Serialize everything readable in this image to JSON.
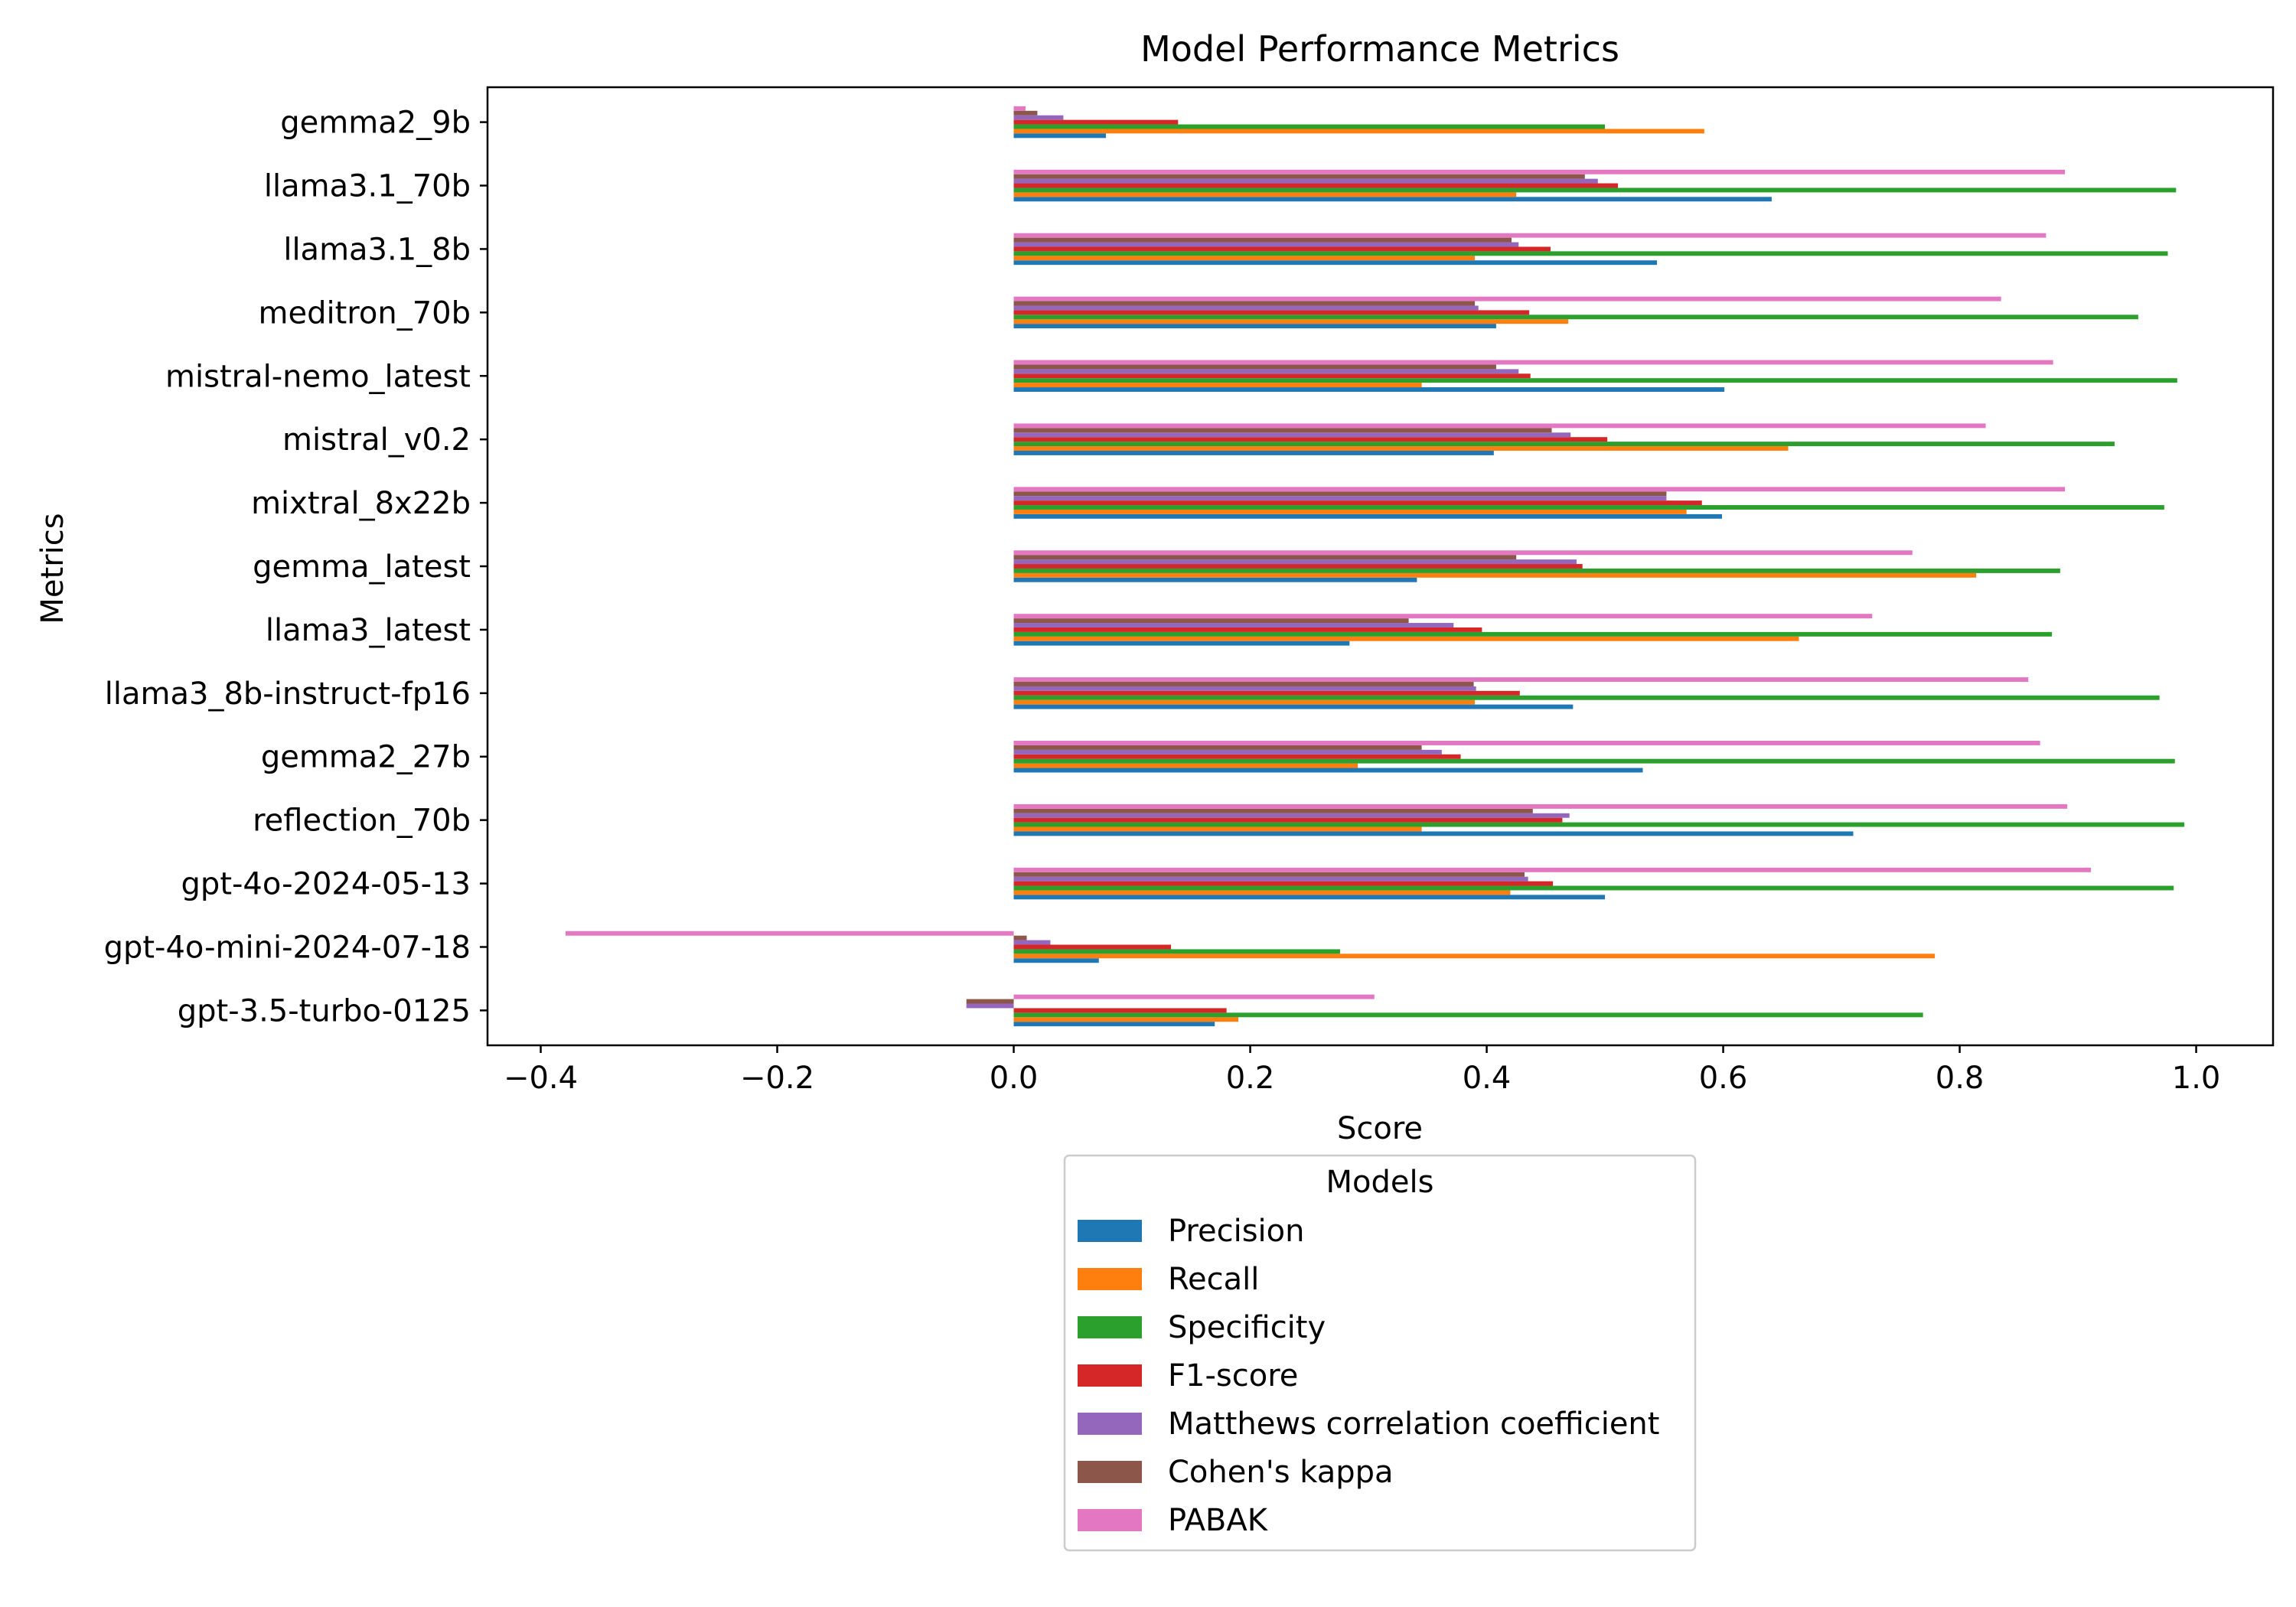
{
  "chart_data": {
    "type": "bar",
    "orientation": "horizontal",
    "title": "Model Performance Metrics",
    "xlabel": "Score",
    "ylabel": "Metrics",
    "xlim": [
      -0.445,
      1.065
    ],
    "xticks": [
      -0.4,
      -0.2,
      0.0,
      0.2,
      0.4,
      0.6,
      0.8,
      1.0
    ],
    "xtick_labels": [
      "−0.4",
      "−0.2",
      "0.0",
      "0.2",
      "0.4",
      "0.6",
      "0.8",
      "1.0"
    ],
    "grid": false,
    "legend": {
      "title": "Models",
      "placement": "below"
    },
    "categories": [
      "gemma2_9b",
      "llama3.1_70b",
      "llama3.1_8b",
      "meditron_70b",
      "mistral-nemo_latest",
      "mistral_v0.2",
      "mixtral_8x22b",
      "gemma_latest",
      "llama3_latest",
      "llama3_8b-instruct-fp16",
      "gemma2_27b",
      "reflection_70b",
      "gpt-4o-2024-05-13",
      "gpt-4o-mini-2024-07-18",
      "gpt-3.5-turbo-0125"
    ],
    "series": [
      {
        "name": "Precision",
        "color": "#1f77b4",
        "values": [
          0.078,
          0.641,
          0.544,
          0.408,
          0.601,
          0.406,
          0.599,
          0.341,
          0.284,
          0.473,
          0.532,
          0.71,
          0.5,
          0.072,
          0.17
        ]
      },
      {
        "name": "Recall",
        "color": "#ff7f0e",
        "values": [
          0.584,
          0.425,
          0.39,
          0.469,
          0.345,
          0.655,
          0.569,
          0.814,
          0.664,
          0.39,
          0.291,
          0.345,
          0.42,
          0.779,
          0.19
        ]
      },
      {
        "name": "Specificity",
        "color": "#2ca02c",
        "values": [
          0.5,
          0.983,
          0.976,
          0.951,
          0.984,
          0.931,
          0.973,
          0.885,
          0.878,
          0.969,
          0.982,
          0.99,
          0.981,
          0.276,
          0.769
        ]
      },
      {
        "name": "F1-score",
        "color": "#d62728",
        "values": [
          0.139,
          0.511,
          0.454,
          0.436,
          0.437,
          0.502,
          0.582,
          0.481,
          0.396,
          0.428,
          0.378,
          0.464,
          0.456,
          0.133,
          0.18
        ]
      },
      {
        "name": "Matthews correlation coefficient",
        "color": "#9467bd",
        "values": [
          0.042,
          0.494,
          0.427,
          0.393,
          0.427,
          0.471,
          0.552,
          0.476,
          0.372,
          0.391,
          0.362,
          0.47,
          0.435,
          0.031,
          -0.04
        ]
      },
      {
        "name": "Cohen's kappa",
        "color": "#8c564b",
        "values": [
          0.02,
          0.483,
          0.421,
          0.39,
          0.408,
          0.455,
          0.552,
          0.425,
          0.334,
          0.389,
          0.345,
          0.439,
          0.432,
          0.011,
          -0.04
        ]
      },
      {
        "name": "PABAK",
        "color": "#e377c2",
        "values": [
          0.01,
          0.889,
          0.873,
          0.835,
          0.879,
          0.822,
          0.889,
          0.76,
          0.726,
          0.858,
          0.868,
          0.891,
          0.911,
          -0.379,
          0.305
        ]
      }
    ]
  }
}
